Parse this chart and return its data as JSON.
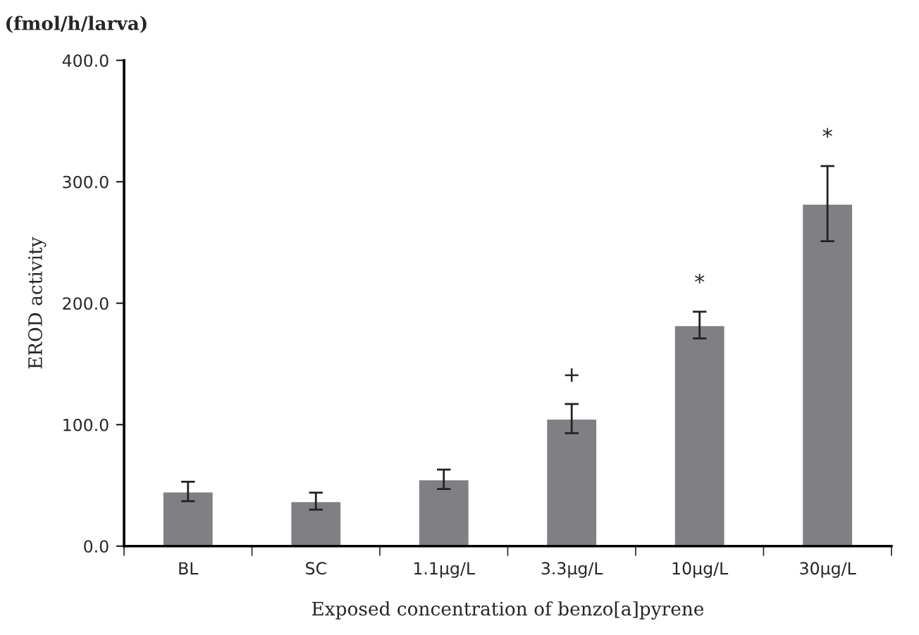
{
  "chart_data": {
    "type": "bar",
    "xlabel": "Exposed concentration of benzo[a]pyrene",
    "ylabel": "EROD activity",
    "categories": [
      "BL",
      "SC",
      "1.1μg/L",
      "3.3μg/L",
      "10μg/L",
      "30μg/L"
    ],
    "values": [
      45,
      37,
      55,
      105,
      182,
      282
    ],
    "errors": [
      8,
      7,
      8,
      12,
      11,
      31
    ],
    "color": "#808084",
    "ylim": [
      0,
      400
    ],
    "yticks": [
      {
        "value": 0,
        "label": "0.0"
      },
      {
        "value": 100,
        "label": "100.0"
      },
      {
        "value": 200,
        "label": "200.0"
      },
      {
        "value": 300,
        "label": "300.0"
      },
      {
        "value": 400,
        "label": "400.0"
      }
    ],
    "annotations": [
      "(fmol/h/larva)",
      "+",
      "*",
      "*"
    ],
    "grid": false
  }
}
